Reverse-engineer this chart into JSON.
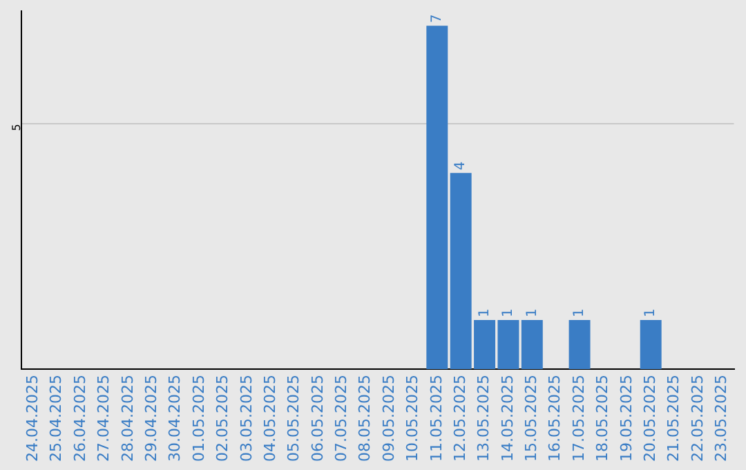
{
  "chart_data": {
    "type": "bar",
    "categories": [
      "24.04.2025",
      "25.04.2025",
      "26.04.2025",
      "27.04.2025",
      "28.04.2025",
      "29.04.2025",
      "30.04.2025",
      "01.05.2025",
      "02.05.2025",
      "03.05.2025",
      "04.05.2025",
      "05.05.2025",
      "06.05.2025",
      "07.05.2025",
      "08.05.2025",
      "09.05.2025",
      "10.05.2025",
      "11.05.2025",
      "12.05.2025",
      "13.05.2025",
      "14.05.2025",
      "15.05.2025",
      "16.05.2025",
      "17.05.2025",
      "18.05.2025",
      "19.05.2025",
      "20.05.2025",
      "21.05.2025",
      "22.05.2025",
      "23.05.2025"
    ],
    "values": [
      null,
      null,
      null,
      null,
      null,
      null,
      null,
      null,
      null,
      null,
      null,
      null,
      null,
      null,
      null,
      null,
      null,
      7,
      4,
      1,
      1,
      1,
      null,
      1,
      null,
      null,
      1,
      null,
      null,
      null
    ],
    "color": "#3a7dc5",
    "ylim": [
      0,
      7.3
    ],
    "yticks": [
      5
    ],
    "grid": "y",
    "data_labels": true,
    "legend": false
  }
}
